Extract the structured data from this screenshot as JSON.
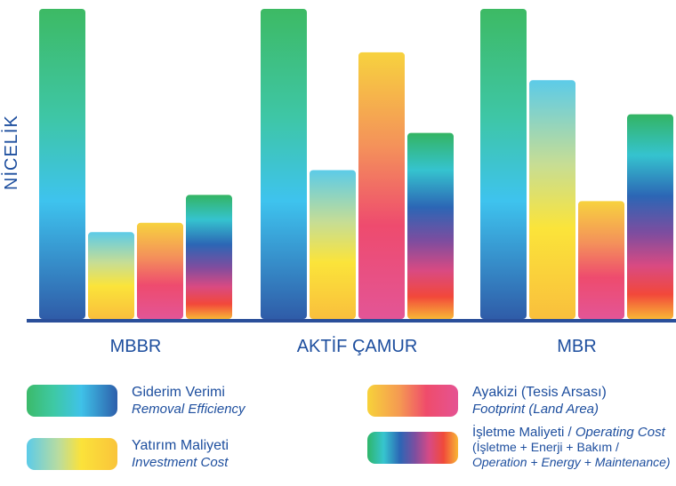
{
  "y_axis_label": "NİCELİK",
  "chart_data": {
    "type": "bar",
    "categories": [
      "MBBR",
      "AKTİF ÇAMUR",
      "MBR"
    ],
    "series": [
      {
        "name": "Giderim Verimi",
        "values": [
          100,
          100,
          100
        ]
      },
      {
        "name": "Yatırım Maliyeti",
        "values": [
          28,
          48,
          77
        ]
      },
      {
        "name": "Ayakizi (Tesis Arsası)",
        "values": [
          31,
          86,
          38
        ]
      },
      {
        "name": "İşletme Maliyeti",
        "values": [
          40,
          60,
          66
        ]
      }
    ],
    "ylim": [
      0,
      100
    ],
    "grid": false
  },
  "legend": {
    "removal": {
      "title": "Giderim Verimi",
      "subtitle": "Removal Efficiency"
    },
    "footprint": {
      "title": "Ayakizi (Tesis Arsası)",
      "subtitle": "Footprint (Land Area)"
    },
    "investment": {
      "title": "Yatırım Maliyeti",
      "subtitle": "Investment Cost"
    },
    "operating": {
      "title": "İşletme Maliyeti",
      "title_separator": " / ",
      "title_en": "Operating Cost",
      "line2": "(İşletme + Enerji + Bakım /",
      "line3": "Operation + Energy + Maintenance)"
    }
  },
  "colors": {
    "axis": "#2a4f9a",
    "text": "#1d4e9e"
  }
}
